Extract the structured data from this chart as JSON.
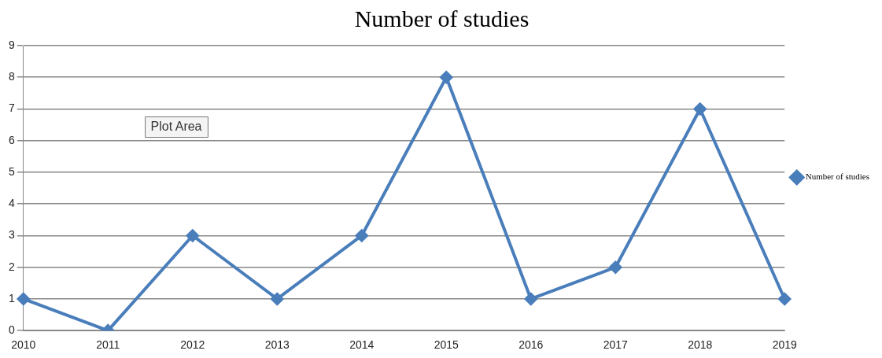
{
  "chart_data": {
    "type": "line",
    "title": "Number of studies",
    "categories": [
      "2010",
      "2011",
      "2012",
      "2013",
      "2014",
      "2015",
      "2016",
      "2017",
      "2018",
      "2019"
    ],
    "series": [
      {
        "name": "Number of studies",
        "color": "#4a7ebb",
        "values": [
          1,
          0,
          3,
          1,
          3,
          8,
          1,
          2,
          7,
          1
        ]
      }
    ],
    "ylim": [
      0,
      9
    ],
    "yticks": [
      0,
      1,
      2,
      3,
      4,
      5,
      6,
      7,
      8,
      9
    ],
    "grid": "y",
    "legend": "right",
    "marker": "diamond",
    "line_style": "solid",
    "annotations": [
      "Plot Area"
    ]
  }
}
